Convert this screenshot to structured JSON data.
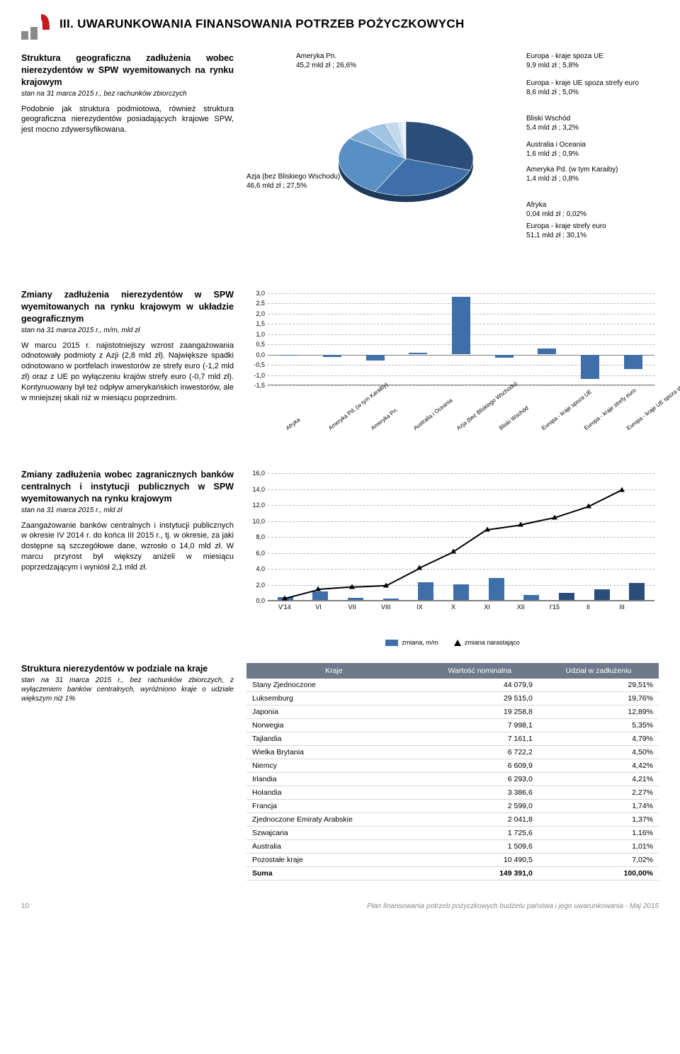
{
  "header": {
    "title": "III. UWARUNKOWANIA FINANSOWANIA POTRZEB POŻYCZKOWYCH"
  },
  "logo": {
    "color_red": "#c51a1b",
    "color_grey": "#888a8c"
  },
  "sections": {
    "s1": {
      "title": "Struktura geograficzna zadłużenia wobec nierezydentów w SPW wyemitowanych na rynku krajowym",
      "sub": "stan na 31 marca 2015 r., bez rachunków zbiorczych",
      "body": "Podobnie jak struktura podmiotowa, również struktura geograficzna nierezydentów posiadających krajowe SPW, jest mocno zdywersyfikowana."
    },
    "s2": {
      "title": "Zmiany zadłużenia nierezydentów w SPW wyemitowanych na rynku krajowym w układzie geograficznym",
      "sub": "stan na 31 marca 2015 r., m/m, mld zł",
      "body": "W marcu 2015 r. najistotniejszy wzrost zaangażowania odnotowały podmioty z Azji (2,8 mld zł). Największe spadki odnotowano w portfelach inwestorów ze strefy euro (-1,2 mld zł) oraz z UE po wyłączeniu krajów strefy euro (-0,7 mld zł). Kontynuowany był też odpływ amerykańskich inwestorów, ale w mniejszej skali niż w miesiącu poprzednim."
    },
    "s3": {
      "title": "Zmiany zadłużenia wobec zagranicznych banków centralnych i instytucji publicznych w SPW wyemitowanych na rynku krajowym",
      "sub": "stan na 31 marca 2015 r., mld zł",
      "body": "Zaangażowanie banków centralnych i instytucji publicznych w okresie IV 2014 r. do końca III 2015 r., tj. w okresie, za jaki dostępne są szczegółowe dane, wzrosło o 14,0 mld zł. W marcu przyrost był większy aniżeli w miesiącu poprzedzającym i wyniósł 2,1 mld zł."
    },
    "s4": {
      "title": "Struktura nierezydentów w podziale na kraje",
      "sub": "stan na 31 marca 2015 r., bez rachunków zbiorczych, z wyłączeniem banków centralnych, wyróżniono kraje o udziale większym niż 1%"
    }
  },
  "pie": {
    "slices": [
      {
        "name": "Europa - kraje strefy euro",
        "value": "51,1 mld zł ; 30,1%",
        "pct": 30.1,
        "color": "#2a4d7a"
      },
      {
        "name": "Azja (bez Bliskiego Wschodu)",
        "value": "46,6 mld zł ; 27,5%",
        "pct": 27.5,
        "color": "#3e6fa8"
      },
      {
        "name": "Ameryka Pn.",
        "value": "45,2 mld zł ; 26,6%",
        "pct": 26.6,
        "color": "#5a8fc4"
      },
      {
        "name": "Europa - kraje spoza UE",
        "value": "9,9 mld zł ; 5,8%",
        "pct": 5.8,
        "color": "#7eabd4"
      },
      {
        "name": "Europa - kraje UE spoza strefy euro",
        "value": "8,6 mld zł ; 5,0%",
        "pct": 5.0,
        "color": "#a1c4e2"
      },
      {
        "name": "Bliski Wschód",
        "value": "5,4 mld zł ; 3,2%",
        "pct": 3.2,
        "color": "#c3daee"
      },
      {
        "name": "Australia i Oceania",
        "value": "1,6 mld zł ; 0,9%",
        "pct": 0.9,
        "color": "#dbe9f5"
      },
      {
        "name": "Ameryka Pd. (w tym Karaiby)",
        "value": "1,4 mld zł ; 0,8%",
        "pct": 0.8,
        "color": "#e9f1f9"
      },
      {
        "name": "Afryka",
        "value": "0,04 mld zł ; 0,02%",
        "pct": 0.02,
        "color": "#f3f7fb"
      }
    ]
  },
  "bar1": {
    "ymin": -1.5,
    "ymax": 3.0,
    "ystep": 0.5,
    "color": "#3e6fa8",
    "categories": [
      "Afryka",
      "Ameryka Pd. (w tym Karaiby)",
      "Ameryka Pn.",
      "Australia i Oceania",
      "Azja (bez Bliskiego Wschodu)",
      "Bliski Wschód",
      "Europa - kraje spoza UE",
      "Europa - kraje strefy euro",
      "Europa - kraje UE spoza strefy euro"
    ],
    "values": [
      -0.02,
      -0.1,
      -0.3,
      0.05,
      2.8,
      -0.15,
      0.25,
      -1.2,
      -0.7
    ]
  },
  "bar2": {
    "ymin": 0,
    "ymax": 16,
    "ystep": 2,
    "bar_color": "#3e6fa8",
    "bar_color_dark": "#2a4d7a",
    "categories": [
      "V'14",
      "VI",
      "VII",
      "VIII",
      "IX",
      "X",
      "XI",
      "XII",
      "I'15",
      "II",
      "III"
    ],
    "monthly": [
      0.4,
      1.1,
      0.3,
      0.2,
      2.2,
      2.0,
      2.8,
      0.6,
      0.9,
      1.3,
      2.1
    ],
    "cumulative": [
      0.4,
      1.5,
      1.8,
      2.0,
      4.2,
      6.2,
      9.0,
      9.6,
      10.5,
      11.9,
      14.0
    ],
    "legend": {
      "l1": "zmiana, m/m",
      "l2": "zmiana narastająco"
    }
  },
  "table": {
    "headers": [
      "Kraje",
      "Wartość nominalna",
      "Udział w zadłużeniu"
    ],
    "rows": [
      [
        "Stany Zjednoczone",
        "44 079,9",
        "29,51%"
      ],
      [
        "Luksemburg",
        "29 515,0",
        "19,76%"
      ],
      [
        "Japonia",
        "19 258,8",
        "12,89%"
      ],
      [
        "Norwegia",
        "7 998,1",
        "5,35%"
      ],
      [
        "Tajlandia",
        "7 161,1",
        "4,79%"
      ],
      [
        "Wielka Brytania",
        "6 722,2",
        "4,50%"
      ],
      [
        "Niemcy",
        "6 609,9",
        "4,42%"
      ],
      [
        "Irlandia",
        "6 293,0",
        "4,21%"
      ],
      [
        "Holandia",
        "3 386,6",
        "2,27%"
      ],
      [
        "Francja",
        "2 599,0",
        "1,74%"
      ],
      [
        "Zjednoczone Emiraty Arabskie",
        "2 041,8",
        "1,37%"
      ],
      [
        "Szwajcaria",
        "1 725,6",
        "1,16%"
      ],
      [
        "Australia",
        "1 509,6",
        "1,01%"
      ],
      [
        "Pozostałe kraje",
        "10 490,5",
        "7,02%"
      ]
    ],
    "sum": [
      "Suma",
      "149 391,0",
      "100,00%"
    ]
  },
  "footer": {
    "page": "10",
    "text": "Plan finansowania potrzeb pożyczkowych budżetu państwa i jego uwarunkowania - Maj 2015"
  }
}
